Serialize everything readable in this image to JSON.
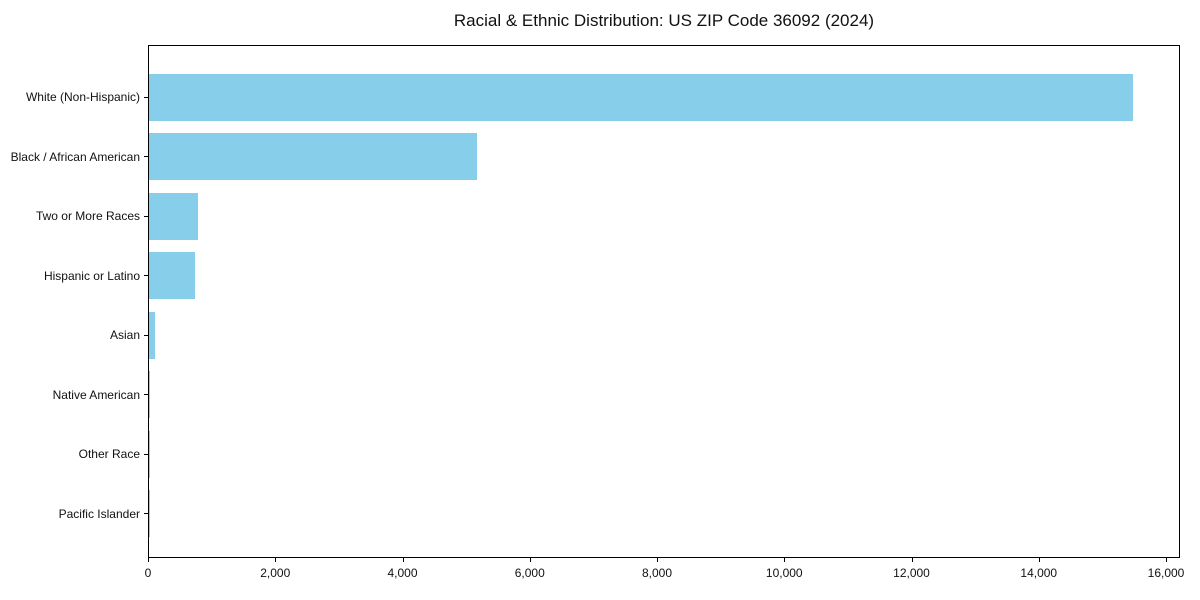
{
  "chart_data": {
    "type": "bar",
    "orientation": "horizontal",
    "title": "Racial & Ethnic Distribution: US ZIP Code 36092 (2024)",
    "xlabel": "",
    "ylabel": "",
    "categories": [
      "White (Non-Hispanic)",
      "Black / African American",
      "Two or More Races",
      "Hispanic or Latino",
      "Asian",
      "Native American",
      "Other Race",
      "Pacific Islander"
    ],
    "values": [
      15470,
      5160,
      770,
      720,
      95,
      20,
      15,
      5
    ],
    "xlim": [
      0,
      16220
    ],
    "x_ticks": [
      0,
      2000,
      4000,
      6000,
      8000,
      10000,
      12000,
      14000,
      16000
    ],
    "x_tick_labels": [
      "0",
      "2,000",
      "4,000",
      "6,000",
      "8,000",
      "10,000",
      "12,000",
      "14,000",
      "16,000"
    ],
    "bar_color": "#87CEEB",
    "grid": false,
    "legend_position": "none"
  }
}
